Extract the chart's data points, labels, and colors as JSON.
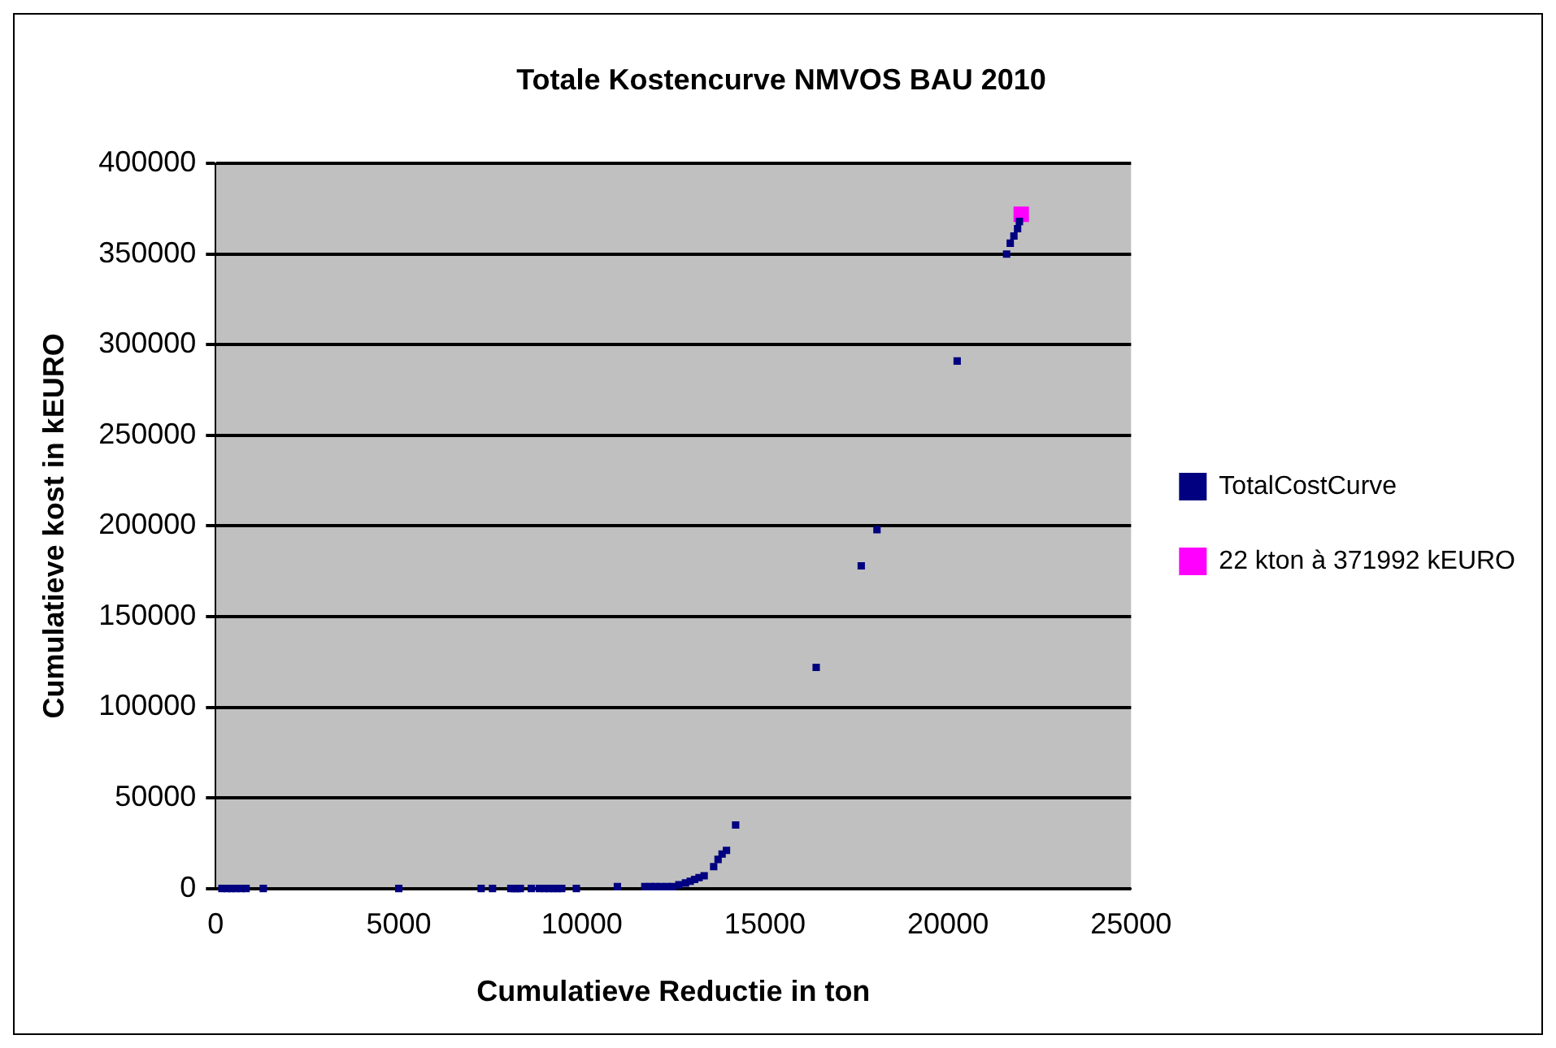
{
  "chart_data": {
    "type": "scatter",
    "title": "Totale Kostencurve NMVOS BAU 2010",
    "xlabel": "Cumulatieve Reductie in ton",
    "ylabel": "Cumulatieve kost in kEURO",
    "xlim": [
      0,
      25000
    ],
    "xticks": [
      0,
      5000,
      10000,
      15000,
      20000,
      25000
    ],
    "ylim": [
      0,
      400000
    ],
    "yticks": [
      0,
      50000,
      100000,
      150000,
      200000,
      250000,
      300000,
      350000,
      400000
    ],
    "grid": "y",
    "legend": "right",
    "series": [
      {
        "name": "TotalCostCurve",
        "color": "#000080",
        "marker": "square",
        "x": [
          170,
          310,
          430,
          550,
          690,
          830,
          1300,
          5000,
          7250,
          7560,
          8060,
          8150,
          8230,
          8320,
          8620,
          8840,
          8980,
          9100,
          9220,
          9330,
          9450,
          9850,
          10970,
          11720,
          11870,
          12000,
          12150,
          12330,
          12480,
          12650,
          12830,
          12960,
          13080,
          13200,
          13340,
          13600,
          13720,
          13830,
          13950,
          14200,
          16400,
          17630,
          18060,
          20250,
          21600,
          21700,
          21800,
          21900,
          21950
        ],
        "values": [
          0,
          0,
          0,
          0,
          0,
          0,
          0,
          0,
          0,
          0,
          0,
          0,
          0,
          0,
          0,
          0,
          0,
          0,
          0,
          0,
          0,
          0,
          1000,
          1000,
          1000,
          1000,
          1000,
          1000,
          1000,
          2000,
          3000,
          4000,
          5000,
          6000,
          7000,
          12000,
          16000,
          19000,
          21000,
          35000,
          122000,
          178000,
          198000,
          291000,
          350000,
          356000,
          360000,
          364000,
          368000
        ]
      },
      {
        "name": "22 kton à 371992 kEURO",
        "color": "#ff00ff",
        "marker": "square",
        "x": [
          22000
        ],
        "values": [
          371992
        ]
      }
    ]
  }
}
